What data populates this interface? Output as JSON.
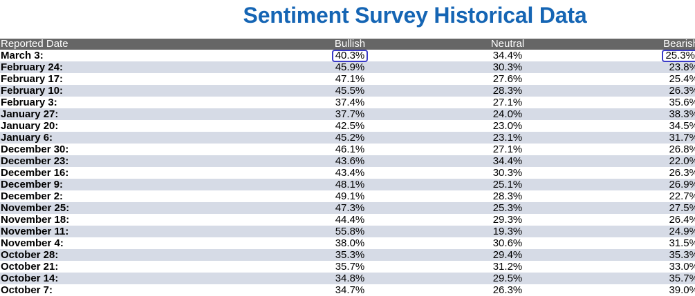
{
  "title": "Sentiment Survey Historical Data",
  "columns": {
    "date": "Reported Date",
    "bullish": "Bullish",
    "neutral": "Neutral",
    "bearish": "Bearish"
  },
  "rows": [
    {
      "date": "March 3:",
      "bullish": "40.3%",
      "neutral": "34.4%",
      "bearish": "25.3%",
      "highlight": true
    },
    {
      "date": "February 24:",
      "bullish": "45.9%",
      "neutral": "30.3%",
      "bearish": "23.8%"
    },
    {
      "date": "February 17:",
      "bullish": "47.1%",
      "neutral": "27.6%",
      "bearish": "25.4%"
    },
    {
      "date": "February 10:",
      "bullish": "45.5%",
      "neutral": "28.3%",
      "bearish": "26.3%"
    },
    {
      "date": "February 3:",
      "bullish": "37.4%",
      "neutral": "27.1%",
      "bearish": "35.6%"
    },
    {
      "date": "January 27:",
      "bullish": "37.7%",
      "neutral": "24.0%",
      "bearish": "38.3%"
    },
    {
      "date": "January 20:",
      "bullish": "42.5%",
      "neutral": "23.0%",
      "bearish": "34.5%"
    },
    {
      "date": "January 6:",
      "bullish": "45.2%",
      "neutral": "23.1%",
      "bearish": "31.7%"
    },
    {
      "date": "December 30:",
      "bullish": "46.1%",
      "neutral": "27.1%",
      "bearish": "26.8%"
    },
    {
      "date": "December 23:",
      "bullish": "43.6%",
      "neutral": "34.4%",
      "bearish": "22.0%"
    },
    {
      "date": "December 16:",
      "bullish": "43.4%",
      "neutral": "30.3%",
      "bearish": "26.3%"
    },
    {
      "date": "December 9:",
      "bullish": "48.1%",
      "neutral": "25.1%",
      "bearish": "26.9%"
    },
    {
      "date": "December 2:",
      "bullish": "49.1%",
      "neutral": "28.3%",
      "bearish": "22.7%"
    },
    {
      "date": "November 25:",
      "bullish": "47.3%",
      "neutral": "25.3%",
      "bearish": "27.5%"
    },
    {
      "date": "November 18:",
      "bullish": "44.4%",
      "neutral": "29.3%",
      "bearish": "26.4%"
    },
    {
      "date": "November 11:",
      "bullish": "55.8%",
      "neutral": "19.3%",
      "bearish": "24.9%"
    },
    {
      "date": "November 4:",
      "bullish": "38.0%",
      "neutral": "30.6%",
      "bearish": "31.5%"
    },
    {
      "date": "October 28:",
      "bullish": "35.3%",
      "neutral": "29.4%",
      "bearish": "35.3%"
    },
    {
      "date": "October 21:",
      "bullish": "35.7%",
      "neutral": "31.2%",
      "bearish": "33.0%"
    },
    {
      "date": "October 14:",
      "bullish": "34.8%",
      "neutral": "29.5%",
      "bearish": "35.7%"
    },
    {
      "date": "October 7:",
      "bullish": "34.7%",
      "neutral": "26.3%",
      "bearish": "39.0%"
    }
  ],
  "colors": {
    "title": "#1565b4",
    "header_bg": "#666666",
    "stripe": "#d6dbe6",
    "highlight_border": "#3a3ac8"
  }
}
